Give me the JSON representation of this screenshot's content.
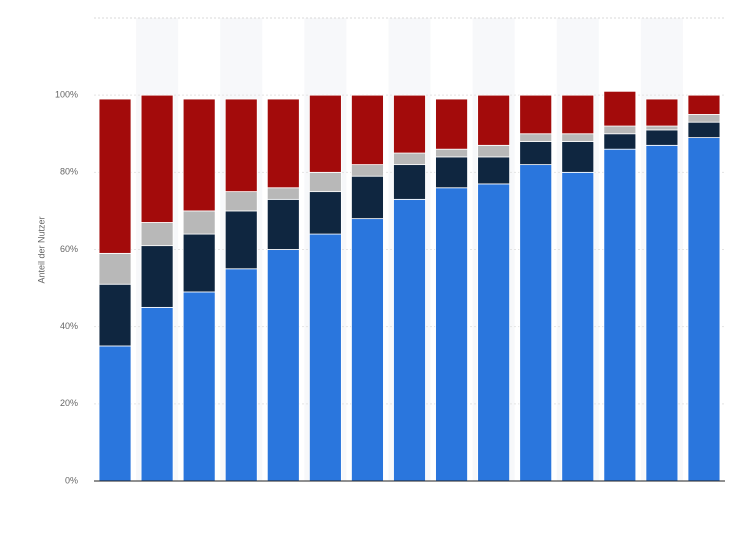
{
  "chart_data": {
    "type": "stacked_bar",
    "y_label": "Anteil der Nutzer",
    "categories": [
      null,
      null,
      null,
      null,
      null,
      null,
      null,
      null,
      null,
      null,
      null,
      null,
      null,
      null,
      null
    ],
    "series": [
      {
        "color": "#2a76dd",
        "values": [
          35,
          45,
          49,
          55,
          60,
          64,
          68,
          73,
          76,
          77,
          82,
          80,
          86,
          87,
          89
        ]
      },
      {
        "color": "#0f2640",
        "values": [
          16,
          16,
          15,
          15,
          13,
          11,
          11,
          9,
          8,
          7,
          6,
          8,
          4,
          4,
          4
        ]
      },
      {
        "color": "#b8b8b8",
        "values": [
          8,
          6,
          6,
          5,
          3,
          5,
          3,
          3,
          2,
          3,
          2,
          2,
          2,
          1,
          2
        ]
      },
      {
        "color": "#a30b0b",
        "values": [
          40,
          33,
          29,
          24,
          23,
          20,
          18,
          15,
          13,
          13,
          10,
          10,
          9,
          7,
          5
        ]
      }
    ],
    "ylim": [
      0,
      120
    ],
    "yticks": [
      {
        "value": 0,
        "label": "0%"
      },
      {
        "value": 20,
        "label": "20%"
      },
      {
        "value": 40,
        "label": "40%"
      },
      {
        "value": 60,
        "label": "60%"
      },
      {
        "value": 80,
        "label": "80%"
      },
      {
        "value": 100,
        "label": "100%"
      }
    ],
    "grid": true
  }
}
